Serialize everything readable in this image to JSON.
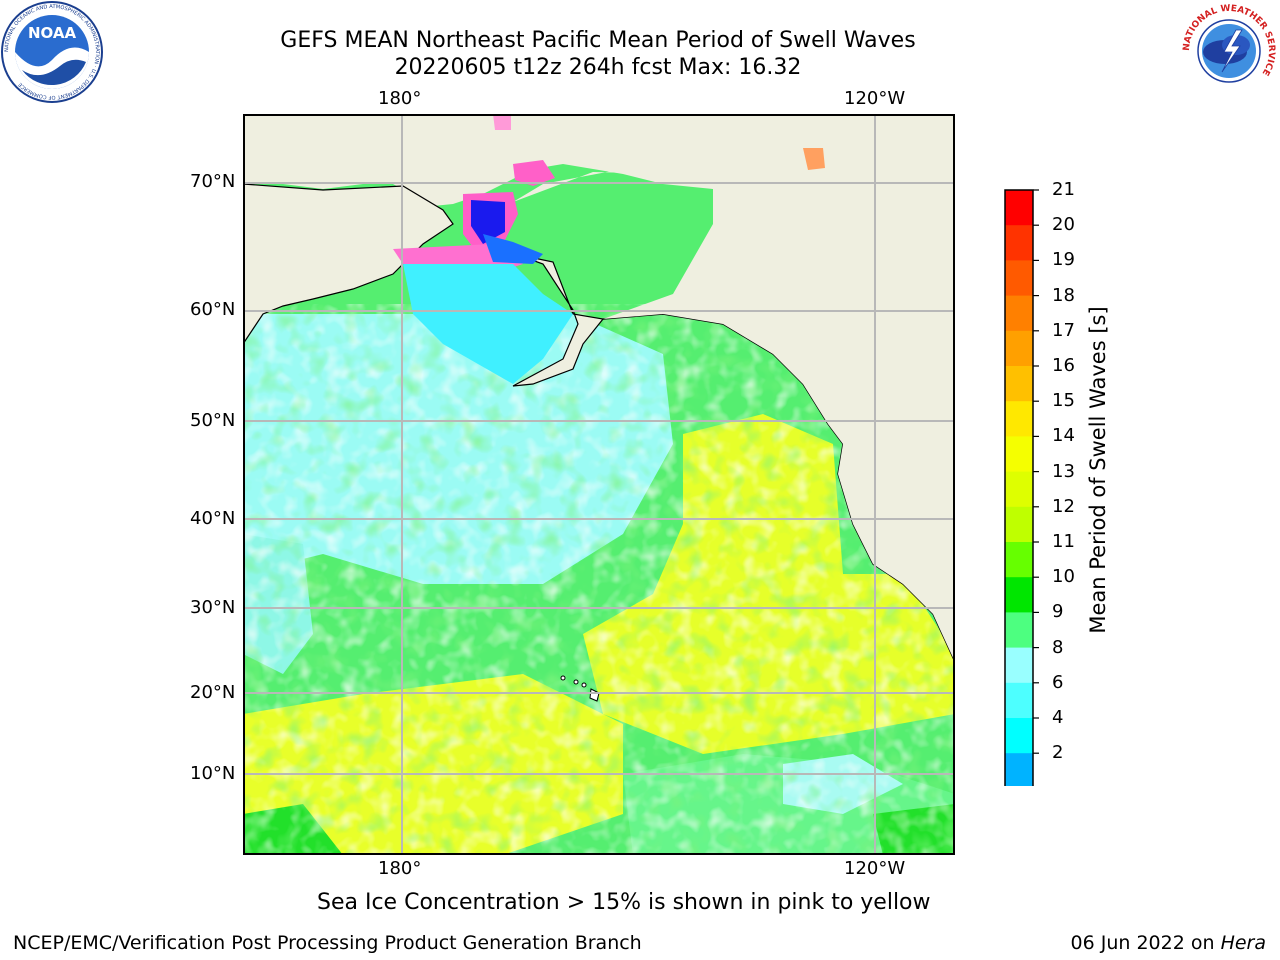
{
  "header": {
    "title_line1": "GEFS MEAN Northeast Pacific Mean Period of Swell Waves",
    "title_line2": "20220605 t12z 264h fcst   Max: 16.32"
  },
  "logos": {
    "left": "noaa-logo",
    "left_text": "NOAA",
    "left_ring_text": "NATIONAL OCEANIC AND ATMOSPHERIC ADMINISTRATION · U.S. DEPARTMENT OF COMMERCE",
    "right": "nws-logo",
    "right_ring_text": "NATIONAL WEATHER SERVICE"
  },
  "map": {
    "top_lon_labels": [
      "180°",
      "120°W"
    ],
    "bottom_lon_labels": [
      "180°",
      "120°W"
    ],
    "lat_labels": [
      "70°N",
      "60°N",
      "50°N",
      "40°N",
      "30°N",
      "20°N",
      "10°N"
    ],
    "land_color": "#efefe0",
    "grid_color": "#b8b8b8"
  },
  "colorbar": {
    "label": "Mean Period of Swell Waves [s]",
    "ticks": [
      "21",
      "20",
      "19",
      "18",
      "17",
      "16",
      "15",
      "14",
      "13",
      "12",
      "11",
      "10",
      "9",
      "8",
      "6",
      "4",
      "2"
    ],
    "colors_top_to_bottom": [
      "#ff0000",
      "#ff3300",
      "#ff5a00",
      "#ff8000",
      "#ffa000",
      "#ffc000",
      "#ffe800",
      "#f5ff00",
      "#deff00",
      "#bfff00",
      "#66ff00",
      "#00e600",
      "#4dff80",
      "#99ffff",
      "#4dffff",
      "#00ffff",
      "#00b3ff",
      "#0070ff"
    ],
    "extend_low_color": "#0000ff"
  },
  "note": "Sea Ice Concentration > 15% is shown in pink to yellow",
  "footer": {
    "left": "NCEP/EMC/Verification Post Processing Product Generation Branch",
    "right_prefix": "06 Jun 2022 on ",
    "right_italic": "Hera"
  }
}
